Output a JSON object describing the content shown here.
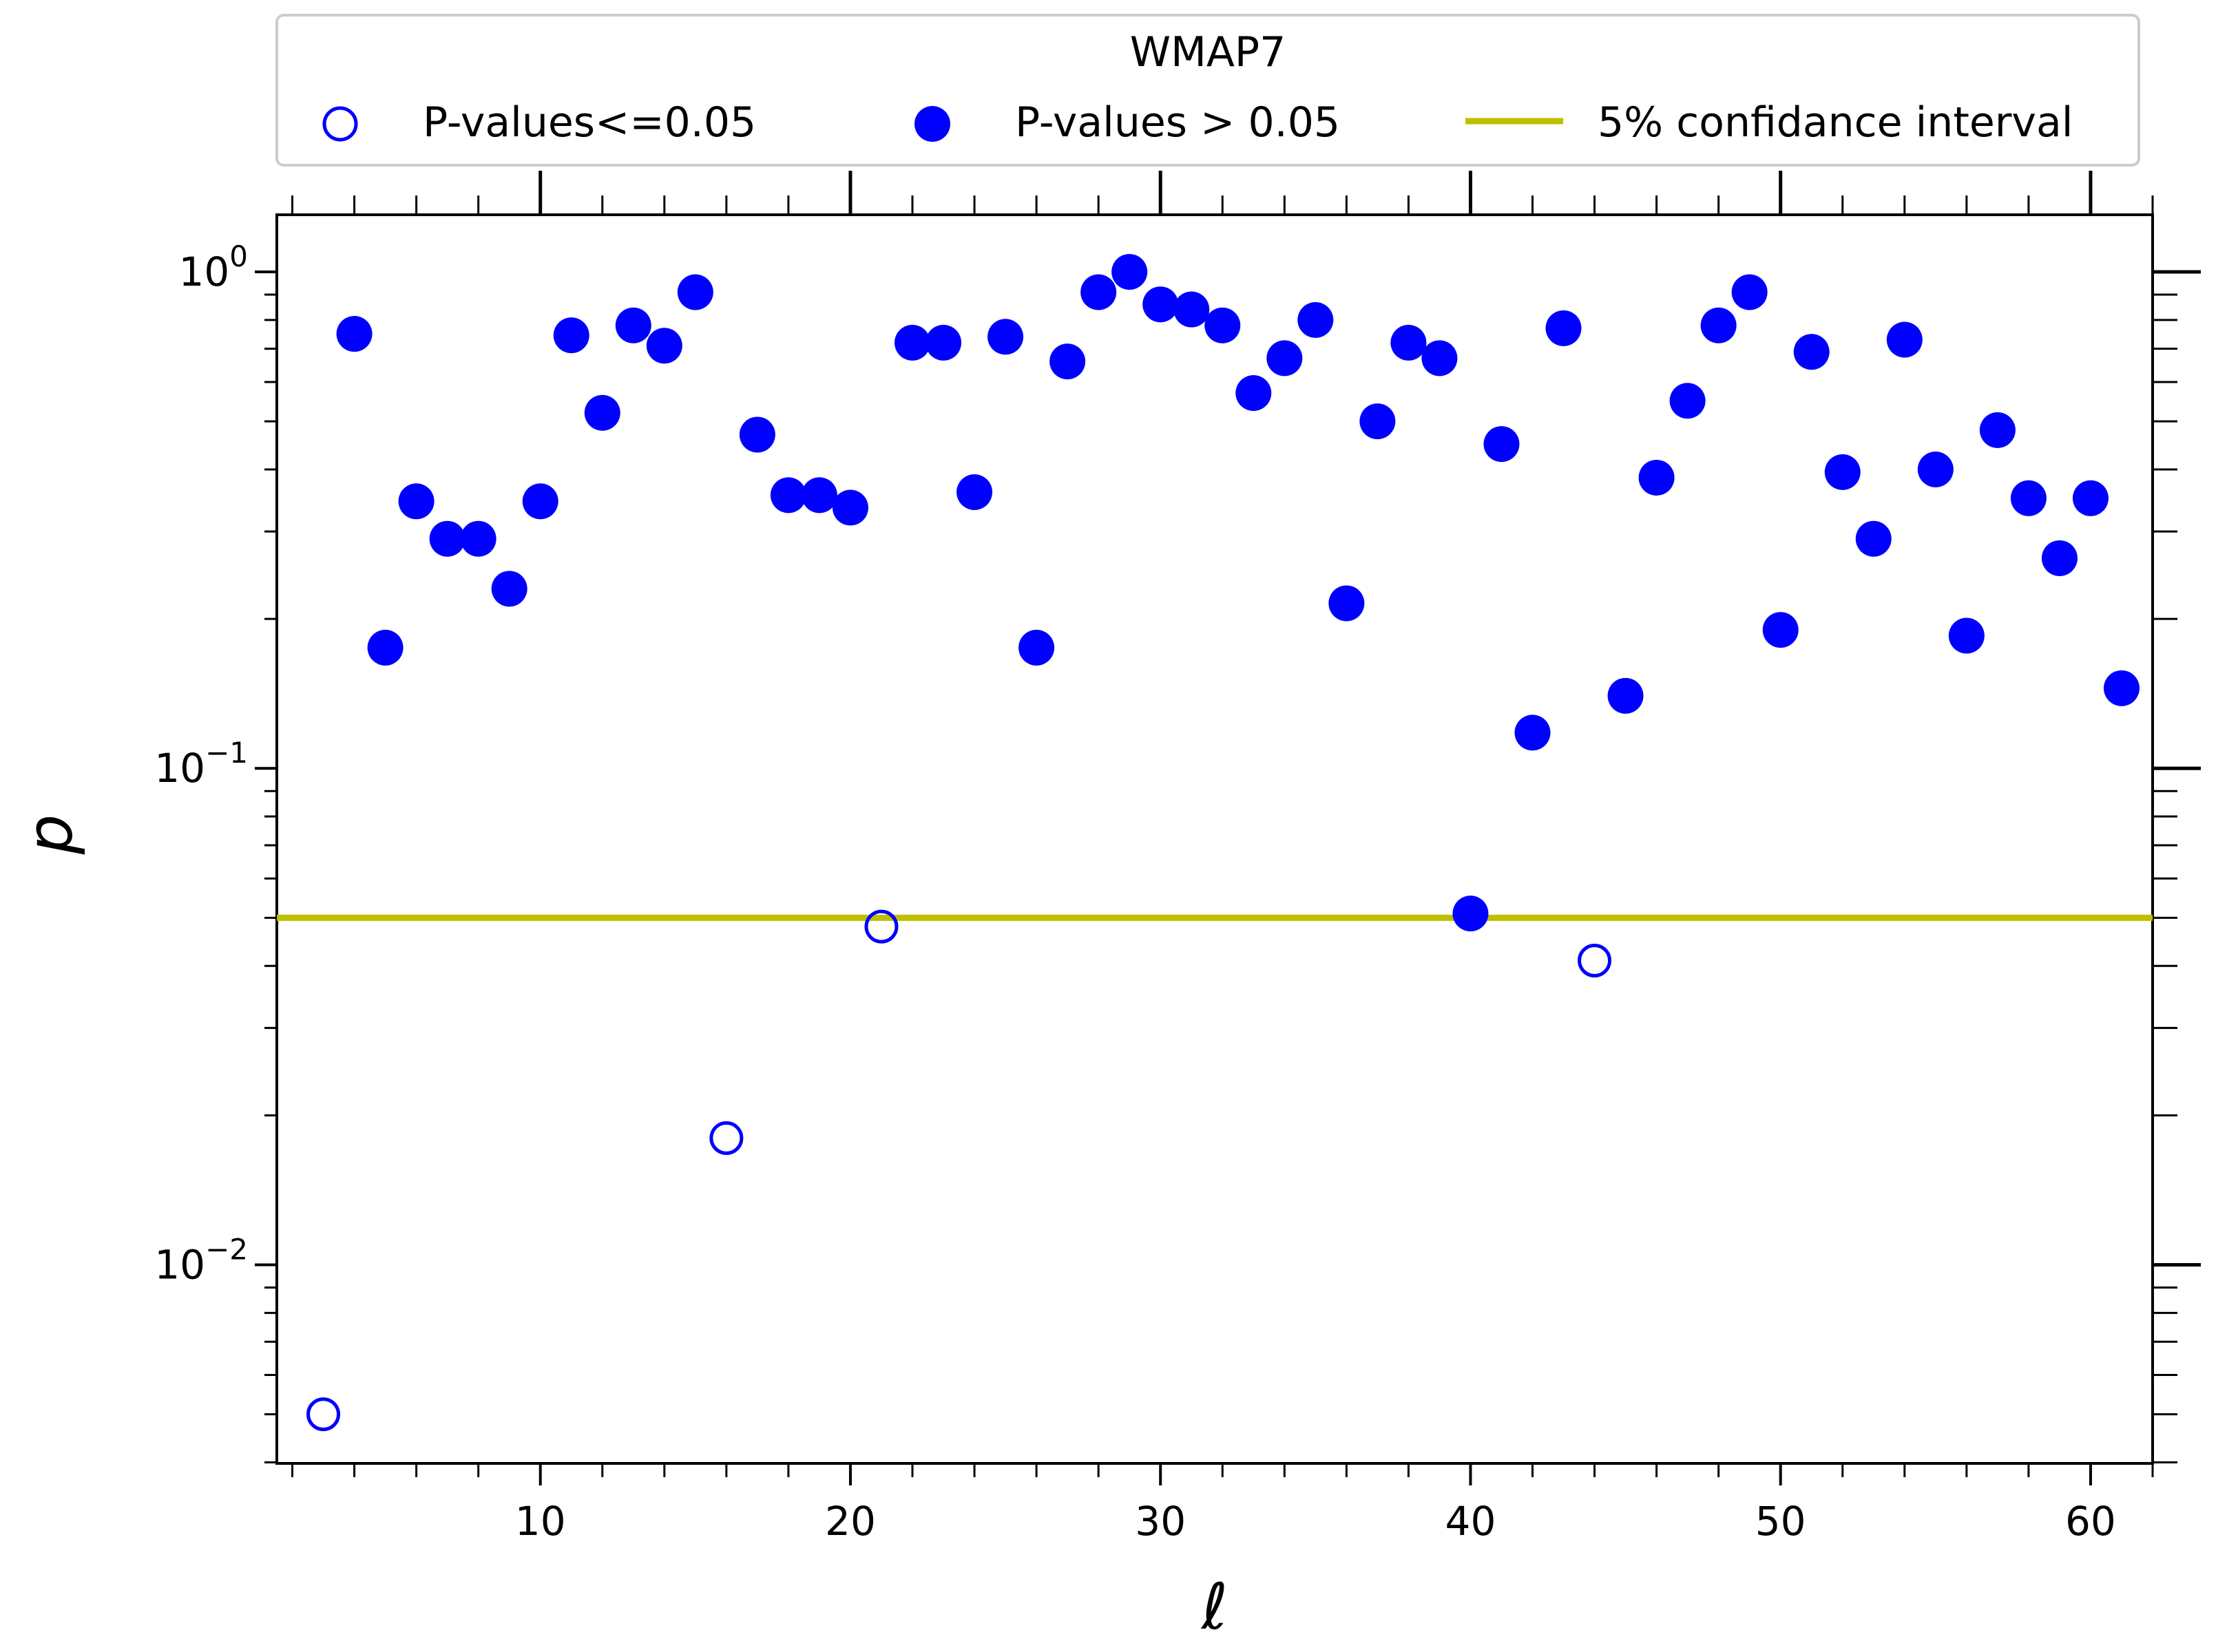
{
  "chart_data": {
    "type": "scatter",
    "title": "",
    "xlabel": "ℓ",
    "ylabel": "p",
    "xlim": [
      1.5,
      62
    ],
    "ylim_log10": [
      -2.4,
      0.115
    ],
    "yscale": "log",
    "xticks": [
      10,
      20,
      30,
      40,
      50,
      60
    ],
    "xtick_labels": [
      "10",
      "20",
      "30",
      "40",
      "50",
      "60"
    ],
    "yticks": [
      0.01,
      0.1,
      1.0
    ],
    "ytick_labels": [
      {
        "base": "10",
        "exp": "−2"
      },
      {
        "base": "10",
        "exp": "−1"
      },
      {
        "base": "10",
        "exp": "0"
      }
    ],
    "legend": {
      "title": "WMAP7",
      "position": "top-center",
      "entries": [
        {
          "label": "P-values<=0.05",
          "marker": "open-circle",
          "color": "#0000ff"
        },
        {
          "label": "P-values > 0.05",
          "marker": "filled-circle",
          "color": "#0000ff"
        },
        {
          "label": "5% confidance interval",
          "marker": "line",
          "color": "#bfbf00"
        }
      ]
    },
    "threshold": {
      "label": "5% confidance interval",
      "value": 0.05,
      "color": "#bfbf00"
    },
    "series": [
      {
        "name": "P-values<=0.05",
        "marker": "open",
        "color": "#0000ff",
        "points": [
          [
            3,
            0.005
          ],
          [
            16,
            0.018
          ],
          [
            21,
            0.048
          ],
          [
            44,
            0.041
          ]
        ]
      },
      {
        "name": "P-values > 0.05",
        "marker": "filled",
        "color": "#0000ff",
        "points": [
          [
            4,
            0.75
          ],
          [
            5,
            0.175
          ],
          [
            6,
            0.345
          ],
          [
            7,
            0.29
          ],
          [
            8,
            0.29
          ],
          [
            9,
            0.23
          ],
          [
            10,
            0.345
          ],
          [
            11,
            0.745
          ],
          [
            12,
            0.52
          ],
          [
            13,
            0.78
          ],
          [
            14,
            0.71
          ],
          [
            15,
            0.91
          ],
          [
            17,
            0.47
          ],
          [
            18,
            0.355
          ],
          [
            19,
            0.355
          ],
          [
            20,
            0.335
          ],
          [
            22,
            0.72
          ],
          [
            23,
            0.72
          ],
          [
            24,
            0.36
          ],
          [
            25,
            0.74
          ],
          [
            26,
            0.175
          ],
          [
            27,
            0.66
          ],
          [
            28,
            0.91
          ],
          [
            29,
            1.0
          ],
          [
            30,
            0.86
          ],
          [
            31,
            0.84
          ],
          [
            32,
            0.78
          ],
          [
            33,
            0.57
          ],
          [
            34,
            0.67
          ],
          [
            35,
            0.8
          ],
          [
            36,
            0.215
          ],
          [
            37,
            0.5
          ],
          [
            38,
            0.72
          ],
          [
            39,
            0.67
          ],
          [
            40,
            0.051
          ],
          [
            41,
            0.45
          ],
          [
            42,
            0.118
          ],
          [
            43,
            0.77
          ],
          [
            45,
            0.14
          ],
          [
            46,
            0.385
          ],
          [
            47,
            0.55
          ],
          [
            48,
            0.78
          ],
          [
            49,
            0.91
          ],
          [
            50,
            0.19
          ],
          [
            51,
            0.69
          ],
          [
            52,
            0.395
          ],
          [
            53,
            0.29
          ],
          [
            54,
            0.73
          ],
          [
            55,
            0.4
          ],
          [
            56,
            0.185
          ],
          [
            57,
            0.48
          ],
          [
            58,
            0.35
          ],
          [
            59,
            0.265
          ],
          [
            60,
            0.35
          ],
          [
            61,
            0.145
          ]
        ]
      }
    ]
  }
}
